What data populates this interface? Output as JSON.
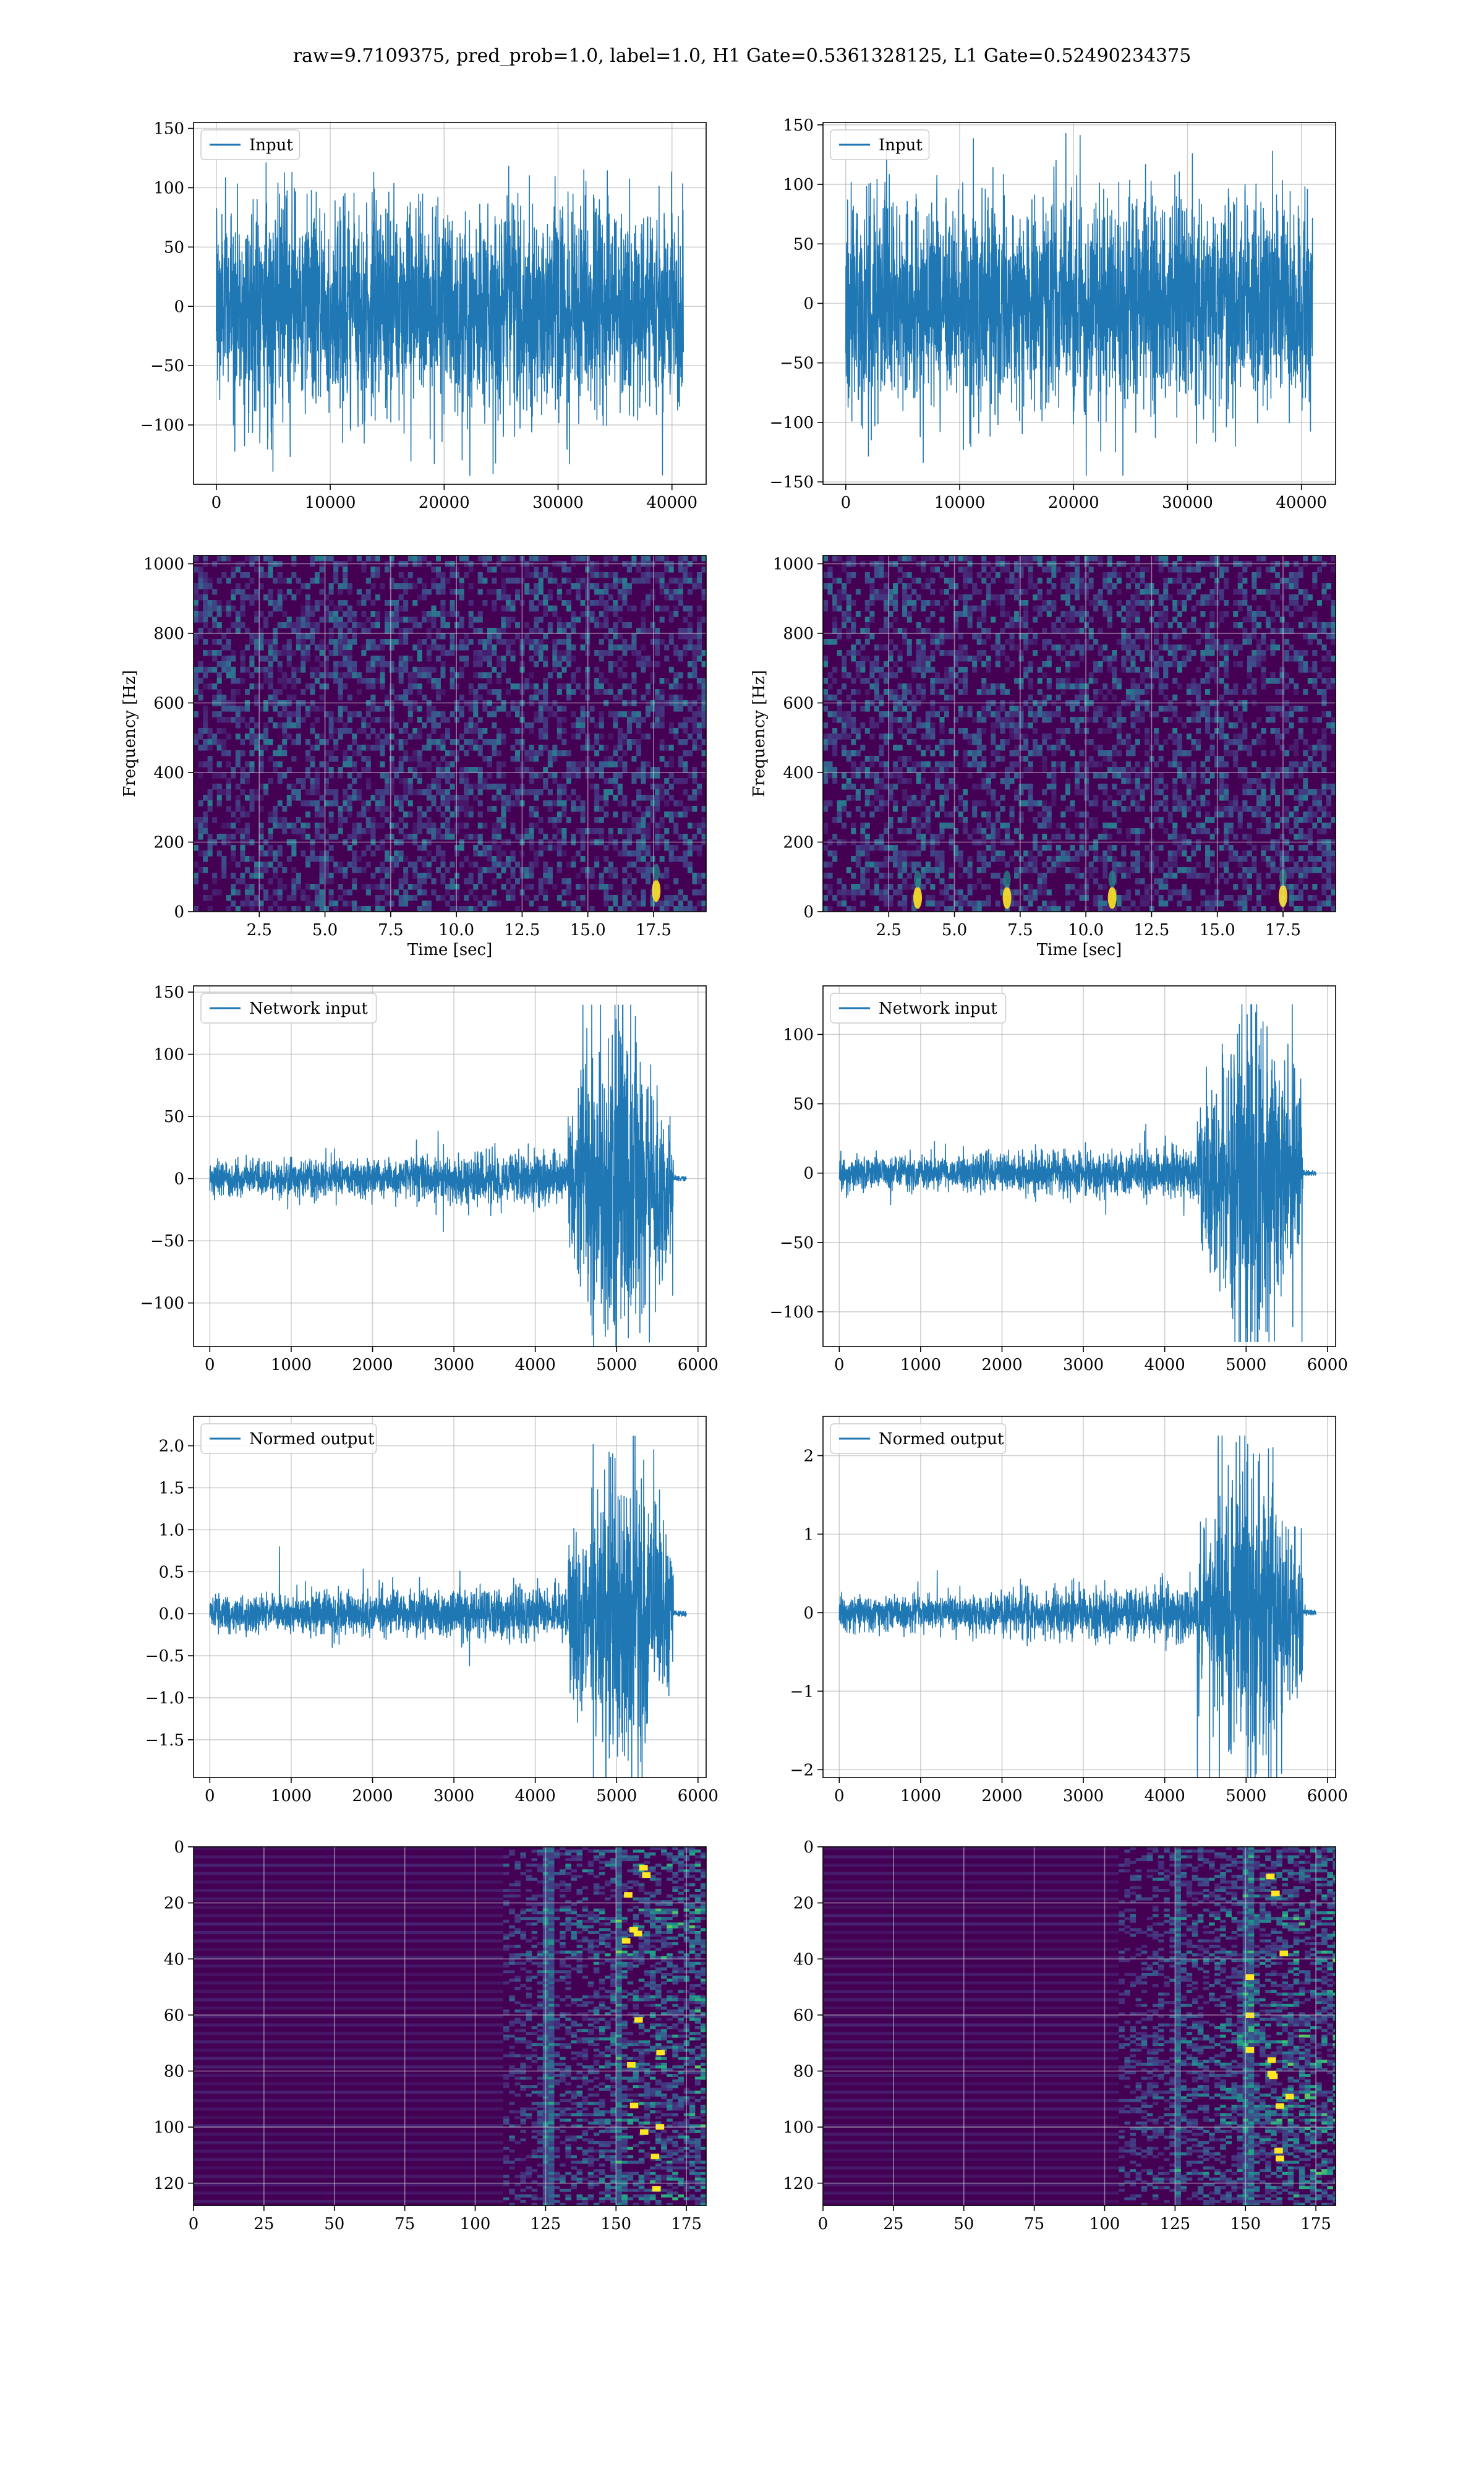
{
  "figure": {
    "suptitle": "raw=9.7109375, pred_prob=1.0, label=1.0, H1 Gate=0.5361328125, L1 Gate=0.52490234375"
  },
  "colors": {
    "line": "#1f77b4",
    "grid": "#b0b0b0",
    "viridis_dark": "#440154",
    "viridis_mid": "#21918c",
    "viridis_bright": "#fde725"
  },
  "chart_data": [
    {
      "id": "h1-input",
      "type": "line",
      "series": [
        {
          "name": "Input"
        }
      ],
      "note_values": "dense Gaussian-like noise, ~41000 samples, amplitude mostly within ±60 with spikes to ~±140",
      "xlim": [
        -2000,
        43000
      ],
      "ylim": [
        -150,
        155
      ],
      "xticks": [
        0,
        10000,
        20000,
        30000,
        40000
      ],
      "yticks": [
        -100,
        -50,
        0,
        50,
        100,
        150
      ],
      "xlabel": "",
      "ylabel": "",
      "legend": "upper-left",
      "grid": true
    },
    {
      "id": "l1-input",
      "type": "line",
      "series": [
        {
          "name": "Input"
        }
      ],
      "xlim": [
        -2000,
        43000
      ],
      "ylim": [
        -152,
        152
      ],
      "xticks": [
        0,
        10000,
        20000,
        30000,
        40000
      ],
      "yticks": [
        -150,
        -100,
        -50,
        0,
        50,
        100,
        150
      ],
      "xlabel": "",
      "ylabel": "",
      "legend": "upper-left",
      "grid": true
    },
    {
      "id": "h1-spectrogram",
      "type": "heatmap",
      "xlim": [
        0,
        19.5
      ],
      "ylim": [
        0,
        1024
      ],
      "xticks": [
        2.5,
        5.0,
        7.5,
        10.0,
        12.5,
        15.0,
        17.5
      ],
      "yticks": [
        0,
        200,
        400,
        600,
        800,
        1000
      ],
      "xlabel": "Time [sec]",
      "ylabel": "Frequency [Hz]",
      "colormap": "viridis",
      "grid": true,
      "bright_features": [
        {
          "t": 17.6,
          "f": 60
        }
      ]
    },
    {
      "id": "l1-spectrogram",
      "type": "heatmap",
      "xlim": [
        0,
        19.5
      ],
      "ylim": [
        0,
        1024
      ],
      "xticks": [
        2.5,
        5.0,
        7.5,
        10.0,
        12.5,
        15.0,
        17.5
      ],
      "yticks": [
        0,
        200,
        400,
        600,
        800,
        1000
      ],
      "xlabel": "Time [sec]",
      "ylabel": "Frequency [Hz]",
      "colormap": "viridis",
      "grid": true,
      "bright_features": [
        {
          "t": 17.5,
          "f": 45
        },
        {
          "t": 11.0,
          "f": 40
        },
        {
          "t": 7.0,
          "f": 40
        },
        {
          "t": 3.6,
          "f": 40
        }
      ]
    },
    {
      "id": "h1-network-input",
      "type": "line",
      "series": [
        {
          "name": "Network input"
        }
      ],
      "note_values": "~5800 samples; low-amplitude noise (±15) growing to a burst around 4700-5700 reaching ~+145 / -122",
      "xlim": [
        -200,
        6100
      ],
      "ylim": [
        -135,
        155
      ],
      "xticks": [
        0,
        1000,
        2000,
        3000,
        4000,
        5000,
        6000
      ],
      "yticks": [
        -100,
        -50,
        0,
        50,
        100,
        150
      ],
      "legend": "upper-left",
      "grid": true
    },
    {
      "id": "l1-network-input",
      "type": "line",
      "series": [
        {
          "name": "Network input"
        }
      ],
      "xlim": [
        -200,
        6100
      ],
      "ylim": [
        -125,
        135
      ],
      "xticks": [
        0,
        1000,
        2000,
        3000,
        4000,
        5000,
        6000
      ],
      "yticks": [
        -100,
        -50,
        0,
        50,
        100
      ],
      "legend": "upper-left",
      "grid": true
    },
    {
      "id": "h1-normed-output",
      "type": "line",
      "series": [
        {
          "name": "Normed output"
        }
      ],
      "xlim": [
        -200,
        6100
      ],
      "ylim": [
        -1.95,
        2.35
      ],
      "xticks": [
        0,
        1000,
        2000,
        3000,
        4000,
        5000,
        6000
      ],
      "yticks": [
        -1.5,
        -1.0,
        -0.5,
        0.0,
        0.5,
        1.0,
        1.5,
        2.0
      ],
      "legend": "upper-left",
      "grid": true
    },
    {
      "id": "l1-normed-output",
      "type": "line",
      "series": [
        {
          "name": "Normed output"
        }
      ],
      "xlim": [
        -200,
        6100
      ],
      "ylim": [
        -2.1,
        2.5
      ],
      "xticks": [
        0,
        1000,
        2000,
        3000,
        4000,
        5000,
        6000
      ],
      "yticks": [
        -2,
        -1,
        0,
        1,
        2
      ],
      "legend": "upper-left",
      "grid": true
    },
    {
      "id": "h1-feature-map",
      "type": "heatmap",
      "xlim": [
        0,
        182
      ],
      "ylim": [
        128,
        0
      ],
      "xticks": [
        0,
        25,
        50,
        75,
        100,
        125,
        150,
        175
      ],
      "yticks": [
        0,
        20,
        40,
        60,
        80,
        100,
        120
      ],
      "colormap": "viridis",
      "grid": true,
      "active_region_columns": [
        110,
        182
      ]
    },
    {
      "id": "l1-feature-map",
      "type": "heatmap",
      "xlim": [
        0,
        182
      ],
      "ylim": [
        128,
        0
      ],
      "xticks": [
        0,
        25,
        50,
        75,
        100,
        125,
        150,
        175
      ],
      "yticks": [
        0,
        20,
        40,
        60,
        80,
        100,
        120
      ],
      "colormap": "viridis",
      "grid": true,
      "active_region_columns": [
        105,
        182
      ]
    }
  ]
}
